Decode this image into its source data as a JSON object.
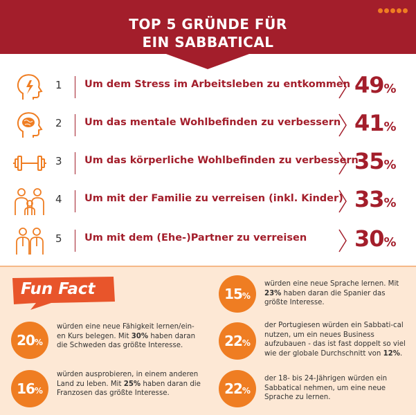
{
  "header": {
    "title_line1": "TOP 5 GRÜNDE FÜR",
    "title_line2": "EIN SABBATICAL",
    "dots_count": 5,
    "colors": {
      "banner": "#a31e2b",
      "accent": "#ef7d22",
      "panel": "#fde8d5"
    }
  },
  "reasons": [
    {
      "num": "1",
      "icon": "stress-head-icon",
      "text": "Um dem Stress im Arbeitsleben zu entkommen",
      "value": "49",
      "unit": "%"
    },
    {
      "num": "2",
      "icon": "brain-head-icon",
      "text": "Um das mentale Wohlbefinden zu verbessern",
      "value": "41",
      "unit": "%"
    },
    {
      "num": "3",
      "icon": "dumbbell-icon",
      "text": "Um das körperliche Wohlbefinden zu verbessern",
      "value": "35",
      "unit": "%"
    },
    {
      "num": "4",
      "icon": "family-icon",
      "text": "Um mit der Familie zu verreisen (inkl. Kinder)",
      "value": "33",
      "unit": "%"
    },
    {
      "num": "5",
      "icon": "couple-icon",
      "text": "Um mit dem (Ehe-)Partner zu verreisen",
      "value": "30",
      "unit": "%"
    }
  ],
  "funfact": {
    "label": "Fun Fact",
    "facts": [
      {
        "value": "20",
        "unit": "%",
        "pre": "würden eine neue Fähigkeit lernen/ein-en Kurs belegen. Mit ",
        "bold": "30%",
        "post": " haben daran die Schweden das größte Interesse."
      },
      {
        "value": "16",
        "unit": "%",
        "pre": "würden ausprobieren, in einem anderen Land zu leben. Mit ",
        "bold": "25%",
        "post": " haben daran die Franzosen das größte Interesse."
      },
      {
        "value": "15",
        "unit": "%",
        "pre": "würden eine neue Sprache lernen. Mit ",
        "bold": "23%",
        "post": " haben daran die Spanier das größte Interesse."
      },
      {
        "value": "22",
        "unit": "%",
        "pre": "der Portugiesen würden ein Sabbati-cal nutzen, um ein neues Business aufzubauen - das ist fast doppelt so viel wie der globale Durchschnitt von ",
        "bold": "12%",
        "post": "."
      },
      {
        "value": "22",
        "unit": "%",
        "pre": "der 18- bis 24-Jährigen würden ein Sabbatical nehmen, um eine neue Sprache zu lernen.",
        "bold": "",
        "post": ""
      }
    ]
  }
}
